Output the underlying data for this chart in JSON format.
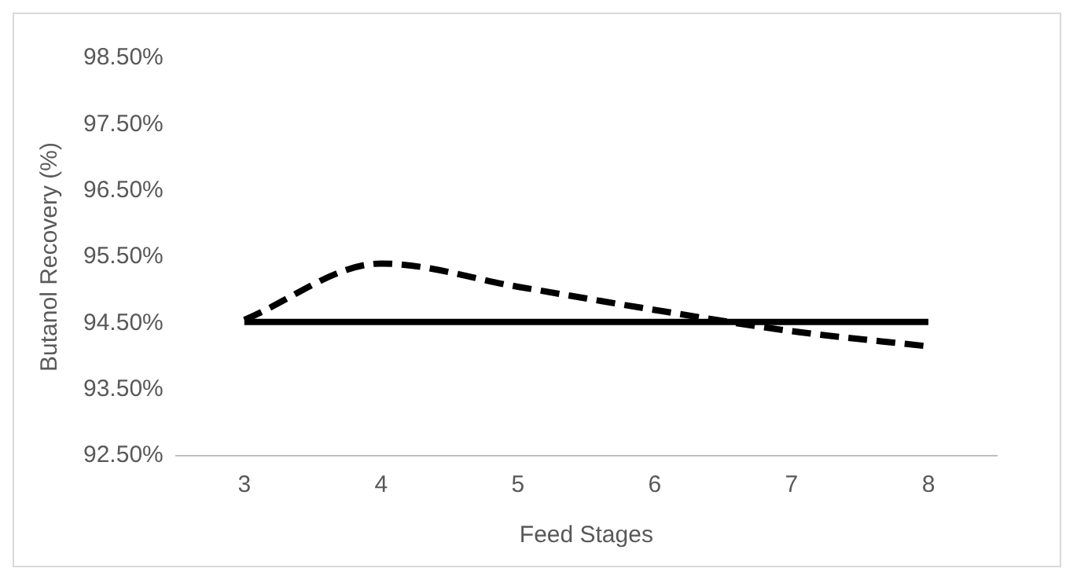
{
  "chart_data": {
    "type": "line",
    "xlabel": "Feed Stages",
    "ylabel": "Butanol Recovery (%)",
    "categories": [
      "3",
      "4",
      "5",
      "6",
      "7",
      "8"
    ],
    "series": [
      {
        "color": "#000000",
        "line_style": "dashed",
        "values": [
          94.55,
          95.4,
          95.05,
          94.7,
          94.38,
          94.15
        ]
      },
      {
        "color": "#000000",
        "line_style": "solid",
        "values": [
          94.52,
          94.52,
          94.52,
          94.52,
          94.52,
          94.52
        ]
      }
    ],
    "ylim": [
      92.5,
      98.5
    ],
    "yticks": [
      {
        "value": 92.5,
        "label": "92.50%"
      },
      {
        "value": 93.5,
        "label": "93.50%"
      },
      {
        "value": 94.5,
        "label": "94.50%"
      },
      {
        "value": 95.5,
        "label": "95.50%"
      },
      {
        "value": 96.5,
        "label": "96.50%"
      },
      {
        "value": 97.5,
        "label": "97.50%"
      },
      {
        "value": 98.5,
        "label": "98.50%"
      }
    ],
    "grid": false,
    "legend": false,
    "marker": "none"
  }
}
